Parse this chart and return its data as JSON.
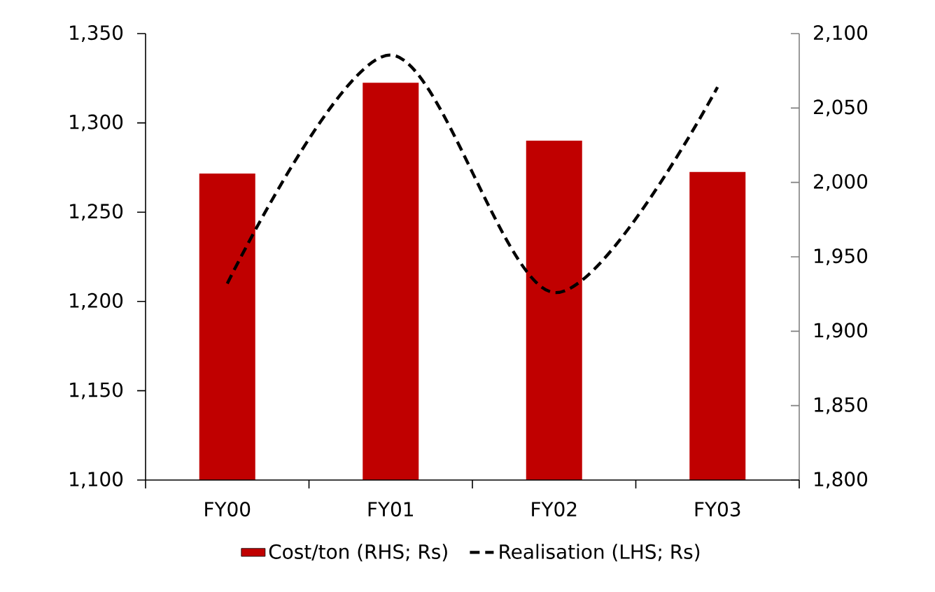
{
  "chart_data": {
    "type": "bar",
    "categories": [
      "FY00",
      "FY01",
      "FY02",
      "FY03"
    ],
    "series": [
      {
        "name": "Cost/ton (RHS; Rs)",
        "axis": "y2",
        "color": "#c00000",
        "values": [
          2006,
          2067,
          2028,
          2007
        ]
      },
      {
        "name": "Realisation (LHS; Rs)",
        "type": "line",
        "color": "#000000",
        "line_style": "dashed",
        "values": [
          1210,
          1338,
          1205,
          1320
        ]
      }
    ],
    "ylim": [
      1100,
      1350
    ],
    "yticks": [
      {
        "value": 1100,
        "label": "1,100"
      },
      {
        "value": 1150,
        "label": "1,150"
      },
      {
        "value": 1200,
        "label": "1,200"
      },
      {
        "value": 1250,
        "label": "1,250"
      },
      {
        "value": 1300,
        "label": "1,300"
      },
      {
        "value": 1350,
        "label": "1,350"
      }
    ],
    "y2lim": [
      1800,
      2100
    ],
    "y2ticks": [
      {
        "value": 1800,
        "label": "1,800"
      },
      {
        "value": 1850,
        "label": "1,850"
      },
      {
        "value": 1900,
        "label": "1,900"
      },
      {
        "value": 1950,
        "label": "1,950"
      },
      {
        "value": 2000,
        "label": "2,000"
      },
      {
        "value": 2050,
        "label": "2,050"
      },
      {
        "value": 2100,
        "label": "2,100"
      }
    ],
    "legend": "bottom"
  }
}
